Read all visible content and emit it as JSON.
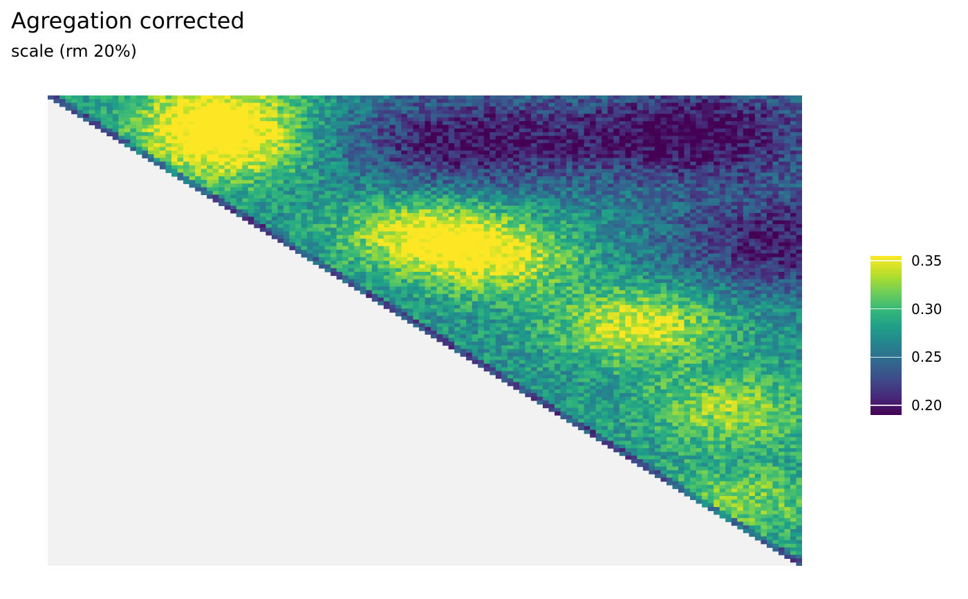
{
  "chart_data": {
    "type": "heatmap",
    "title": "Agregation corrected",
    "subtitle": "scale (rm 20%)",
    "xlabel": "",
    "ylabel": "",
    "grid": false,
    "shape": "upper-triangular matrix",
    "n_bins": 128,
    "background_color": "#f2f2f2",
    "legend": {
      "position": "right",
      "colormap": "viridis",
      "colors": [
        "#440154",
        "#482878",
        "#3e4989",
        "#31688e",
        "#26828e",
        "#1f9e89",
        "#35b779",
        "#6ece58",
        "#b5de2b",
        "#fde725"
      ],
      "range": [
        0.19,
        0.355
      ],
      "ticks": [
        0.2,
        0.25,
        0.3,
        0.35
      ],
      "tick_labels": [
        "0.20",
        "0.25",
        "0.30",
        "0.35"
      ]
    },
    "hotspots": [
      {
        "center_bin": [
          28,
          4
        ],
        "value": 0.35
      },
      {
        "center_bin": [
          30,
          14
        ],
        "value": 0.35
      },
      {
        "center_bin": [
          64,
          37
        ],
        "value": 0.355
      },
      {
        "center_bin": [
          76,
          44
        ],
        "value": 0.34
      },
      {
        "center_bin": [
          100,
          62
        ],
        "value": 0.35
      },
      {
        "center_bin": [
          115,
          85
        ],
        "value": 0.33
      },
      {
        "center_bin": [
          118,
          110
        ],
        "value": 0.32
      }
    ],
    "cold_regions": [
      {
        "center_bin": [
          110,
          10
        ],
        "value": 0.19
      },
      {
        "center_bin": [
          70,
          12
        ],
        "value": 0.2
      },
      {
        "center_bin": [
          126,
          40
        ],
        "value": 0.2
      }
    ],
    "base_value": 0.275
  }
}
